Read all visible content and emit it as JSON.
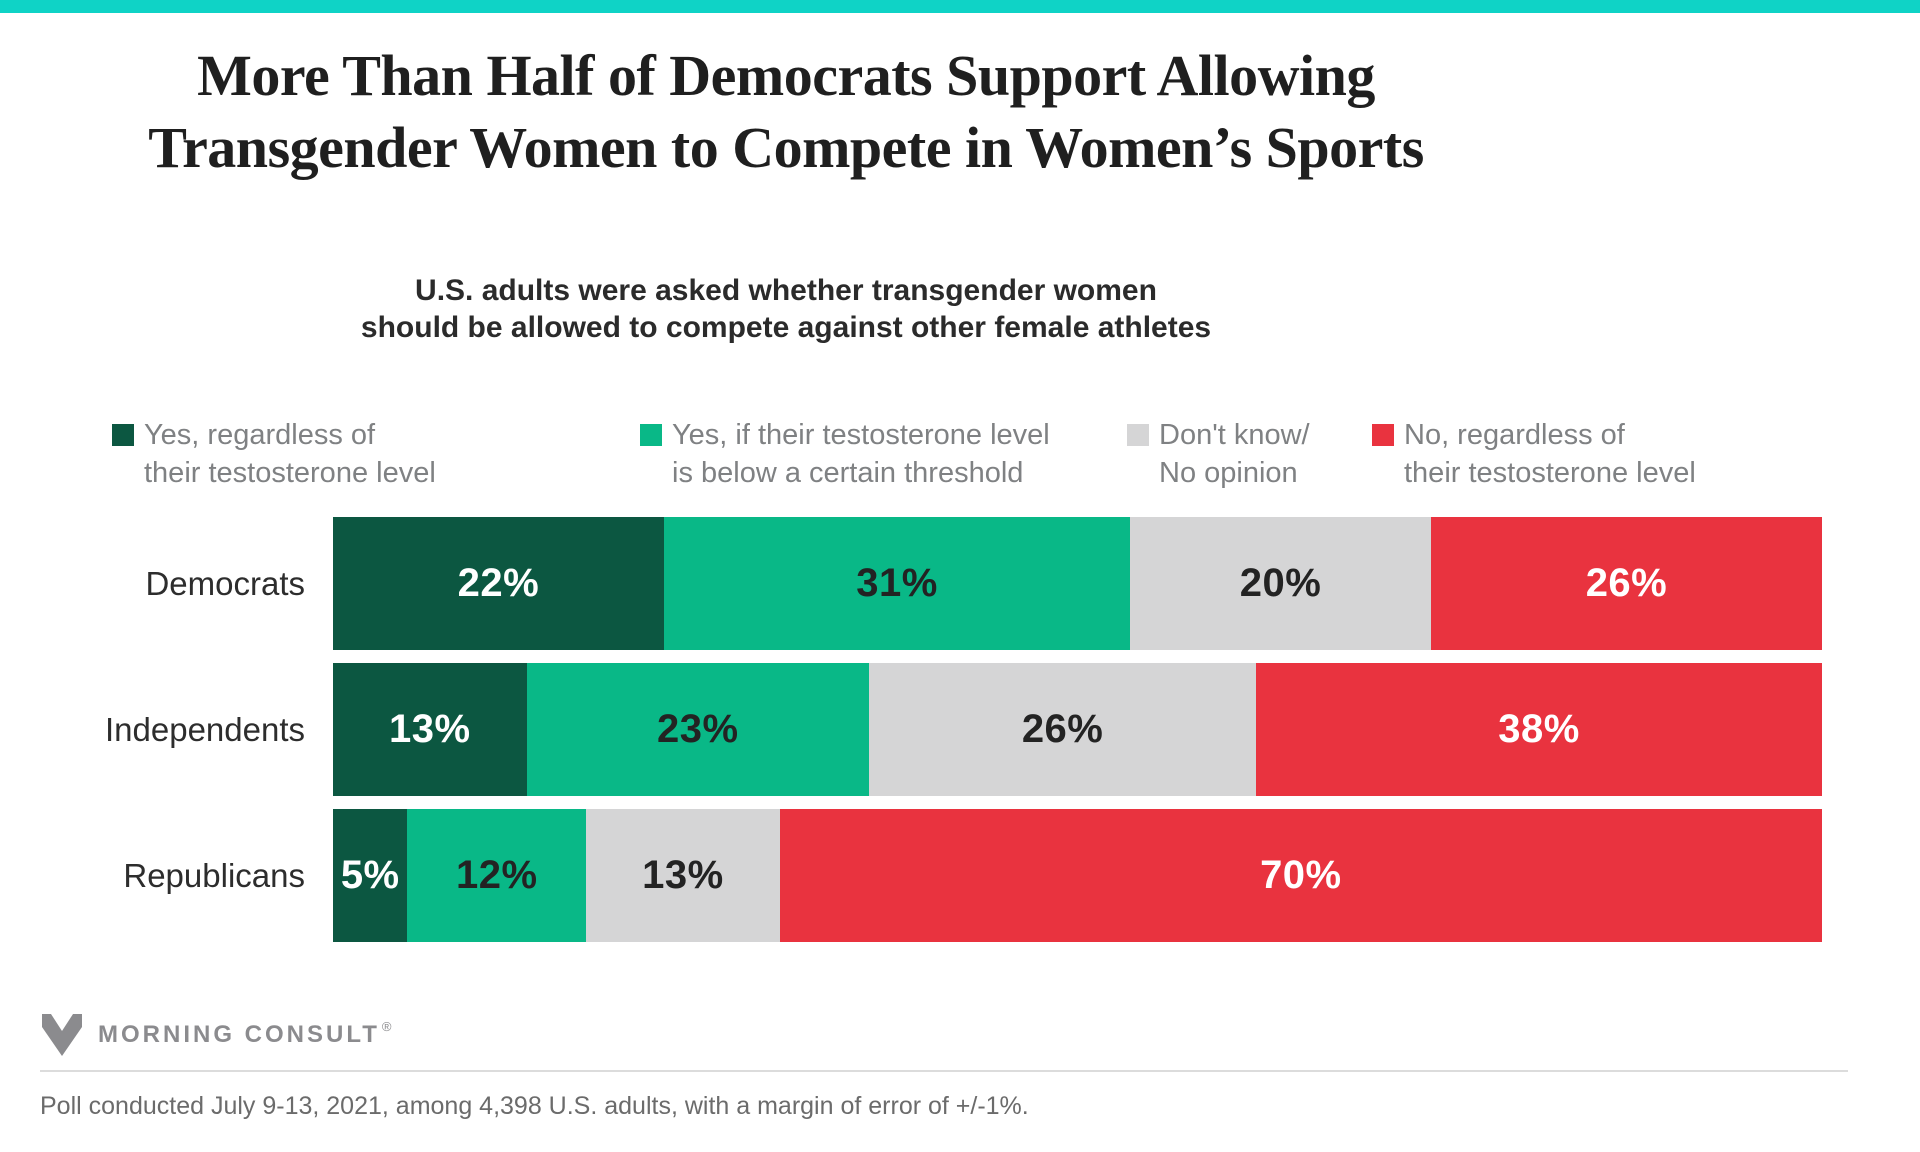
{
  "accent_color": "#0fd3c6",
  "title": "More Than Half of Democrats Support Allowing\nTransgender Women to Compete in Women’s Sports",
  "subtitle": "U.S. adults were asked whether transgender women\nshould be allowed to compete against other female athletes",
  "legend": {
    "items": [
      {
        "label": "Yes, regardless of\ntheir testosterone level",
        "color": "#0c5741"
      },
      {
        "label": "Yes, if their testosterone level\nis below a certain threshold",
        "color": "#09b887"
      },
      {
        "label": "Don't know/\nNo opinion",
        "color": "#d5d5d6"
      },
      {
        "label": "No, regardless of\ntheir testosterone level",
        "color": "#e9333f"
      }
    ]
  },
  "chart_data": {
    "type": "bar",
    "orientation": "horizontal",
    "stacked": true,
    "unit": "%",
    "value_labels": true,
    "legend_position": "top",
    "categories": [
      "Democrats",
      "Independents",
      "Republicans"
    ],
    "series": [
      {
        "name": "Yes, regardless of their testosterone level",
        "color": "#0c5741",
        "label_color": "#ffffff",
        "values": [
          22,
          13,
          5
        ]
      },
      {
        "name": "Yes, if their testosterone level is below a certain threshold",
        "color": "#09b887",
        "label_color": "#232323",
        "values": [
          31,
          23,
          12
        ]
      },
      {
        "name": "Don't know/No opinion",
        "color": "#d5d5d6",
        "label_color": "#232323",
        "values": [
          20,
          26,
          13
        ]
      },
      {
        "name": "No, regardless of their testosterone level",
        "color": "#e9333f",
        "label_color": "#ffffff",
        "values": [
          26,
          38,
          70
        ]
      }
    ]
  },
  "footer": {
    "brand": "MORNING CONSULT",
    "reg": "®",
    "note": "Poll conducted July 9-13, 2021, among 4,398 U.S. adults, with a margin of error of +/-1%."
  }
}
